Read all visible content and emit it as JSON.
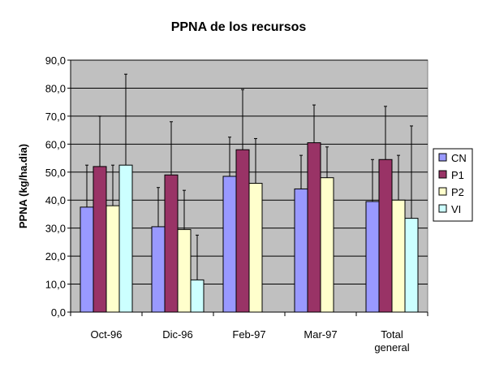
{
  "chart_data": {
    "type": "bar",
    "title": "PPNA de los recursos",
    "xlabel": "",
    "ylabel": "PPNA (kg/ha.dia)",
    "ylim": [
      0,
      90
    ],
    "ytick_step": 10,
    "ytick_labels": [
      "0,0",
      "10,0",
      "20,0",
      "30,0",
      "40,0",
      "50,0",
      "60,0",
      "70,0",
      "80,0",
      "90,0"
    ],
    "categories": [
      [
        "Oct-96"
      ],
      [
        "Dic-96"
      ],
      [
        "Feb-97"
      ],
      [
        "Mar-97"
      ],
      [
        "Total",
        "general"
      ]
    ],
    "series": [
      {
        "name": "CN",
        "color": "#9999FF",
        "values": [
          37.5,
          30.5,
          48.5,
          44.0,
          39.5
        ],
        "error": [
          15.0,
          14.0,
          14.0,
          12.0,
          15.0
        ]
      },
      {
        "name": "P1",
        "color": "#993366",
        "values": [
          52.0,
          49.0,
          58.0,
          60.5,
          54.5
        ],
        "error": [
          18.0,
          19.0,
          21.5,
          13.5,
          19.0
        ]
      },
      {
        "name": "P2",
        "color": "#FFFFCC",
        "values": [
          38.0,
          29.5,
          46.0,
          48.0,
          40.0
        ],
        "error": [
          14.5,
          14.0,
          16.0,
          11.0,
          16.0
        ]
      },
      {
        "name": "VI",
        "color": "#CCFFFF",
        "values": [
          52.5,
          11.5,
          null,
          null,
          33.5
        ],
        "error": [
          32.5,
          16.0,
          null,
          null,
          33.0
        ]
      }
    ],
    "grid": true,
    "plot_background": "#C0C0C0",
    "legend_position": "right"
  }
}
